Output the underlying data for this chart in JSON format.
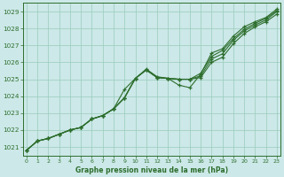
{
  "xlabel": "Graphe pression niveau de la mer (hPa)",
  "bg_color": "#cce8e8",
  "grid_color": "#99ccbb",
  "line_color": "#2d6e2d",
  "xmin": -0.3,
  "xmax": 23.3,
  "ymin": 1020.5,
  "ymax": 1029.5,
  "yticks": [
    1021,
    1022,
    1023,
    1024,
    1025,
    1026,
    1027,
    1028,
    1029
  ],
  "xticks": [
    0,
    1,
    2,
    3,
    4,
    5,
    6,
    7,
    8,
    9,
    10,
    11,
    12,
    13,
    14,
    15,
    16,
    17,
    18,
    19,
    20,
    21,
    22,
    23
  ],
  "lines": [
    [
      1020.8,
      1021.35,
      1021.5,
      1021.75,
      1022.0,
      1022.15,
      1022.65,
      1022.85,
      1023.25,
      1023.9,
      1025.05,
      1025.55,
      1025.1,
      1025.05,
      1025.0,
      1025.0,
      1025.1,
      1026.0,
      1026.3,
      1027.1,
      1027.7,
      1028.1,
      1028.4,
      1028.85
    ],
    [
      1020.8,
      1021.35,
      1021.5,
      1021.75,
      1022.0,
      1022.15,
      1022.65,
      1022.85,
      1023.25,
      1023.9,
      1025.05,
      1025.55,
      1025.1,
      1025.05,
      1025.0,
      1025.0,
      1025.2,
      1026.2,
      1026.5,
      1027.3,
      1027.85,
      1028.2,
      1028.5,
      1029.0
    ],
    [
      1020.8,
      1021.35,
      1021.5,
      1021.75,
      1022.0,
      1022.15,
      1022.65,
      1022.85,
      1023.25,
      1023.9,
      1025.05,
      1025.55,
      1025.1,
      1025.05,
      1025.0,
      1025.0,
      1025.35,
      1026.35,
      1026.7,
      1027.4,
      1027.95,
      1028.3,
      1028.6,
      1029.05
    ],
    [
      1020.8,
      1021.35,
      1021.5,
      1021.75,
      1022.0,
      1022.15,
      1022.65,
      1022.85,
      1023.25,
      1024.4,
      1025.05,
      1025.6,
      1025.15,
      1025.05,
      1024.65,
      1024.5,
      1025.3,
      1026.55,
      1026.8,
      1027.55,
      1028.1,
      1028.4,
      1028.65,
      1029.15
    ]
  ]
}
